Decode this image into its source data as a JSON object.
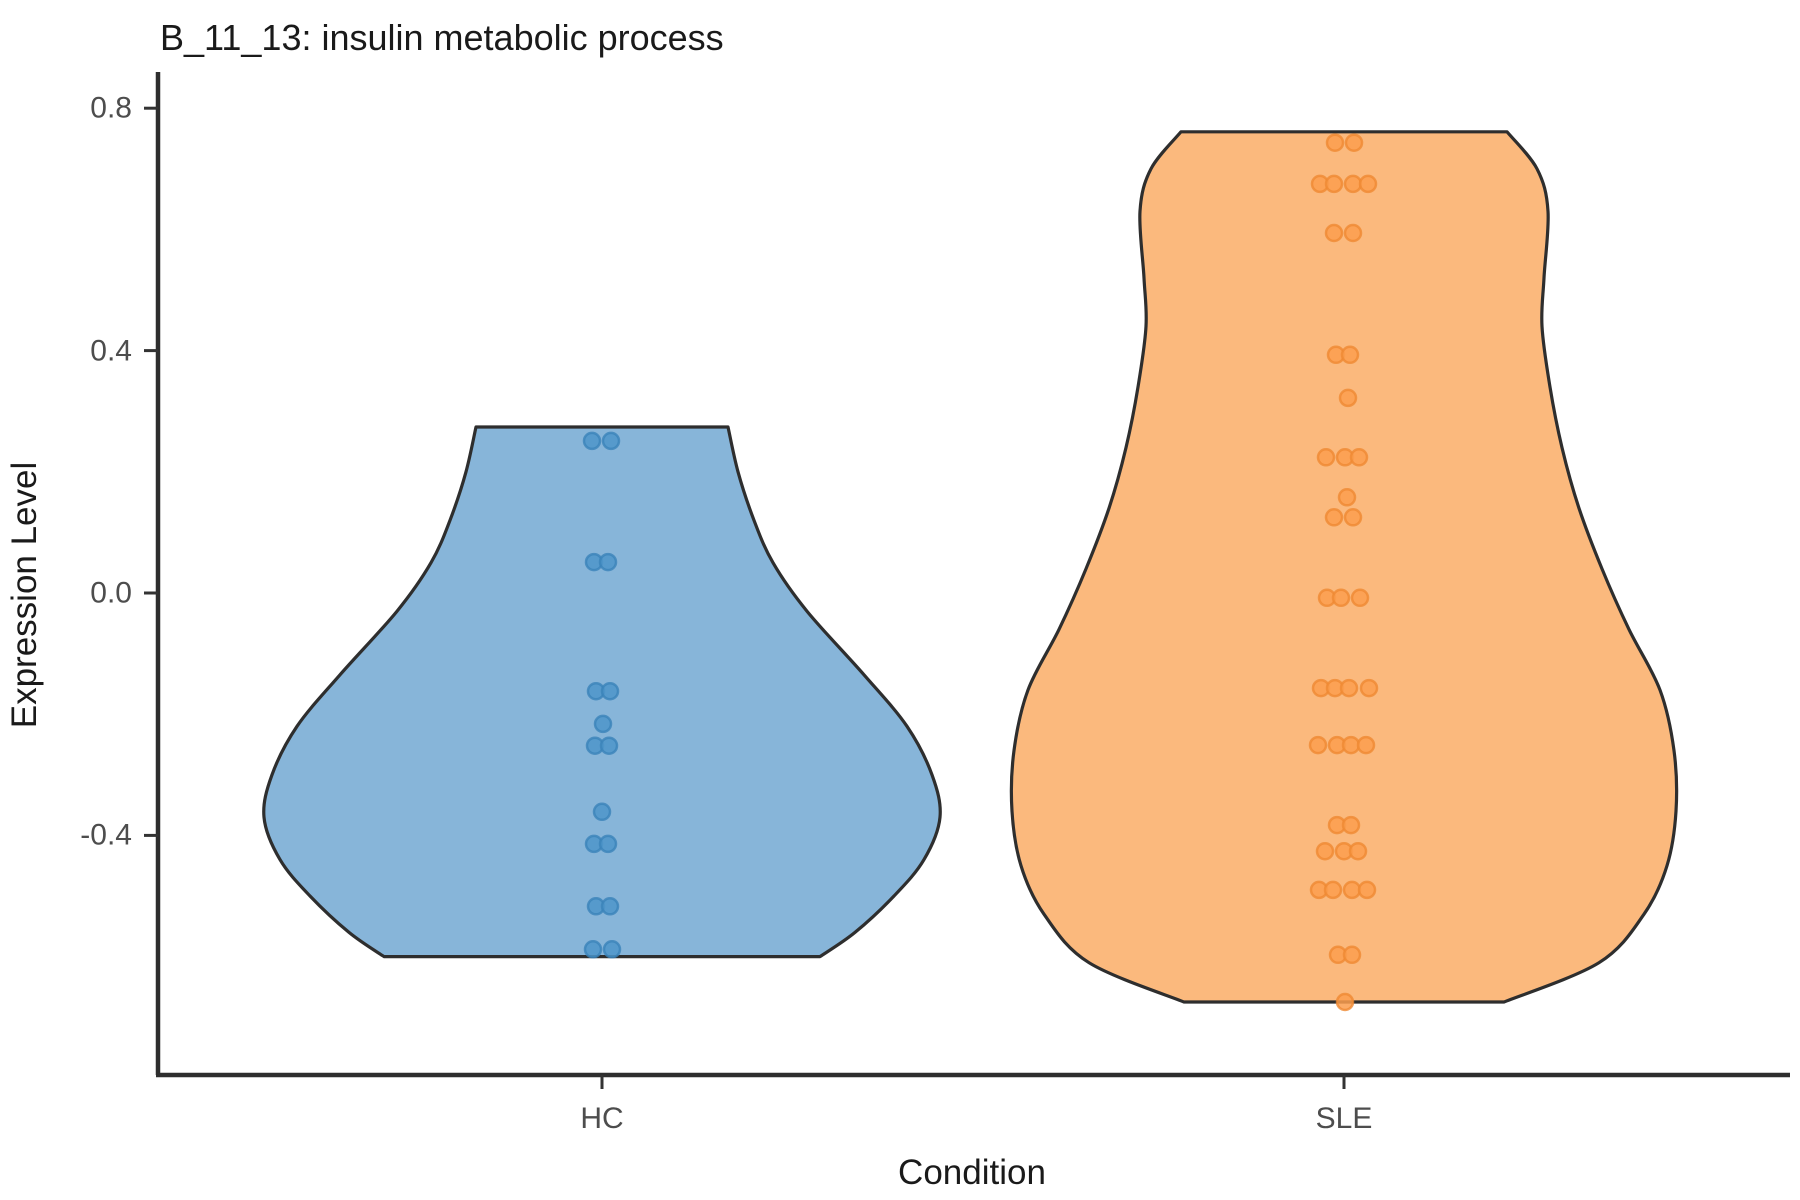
{
  "figure": {
    "title": "B_11_13: insulin metabolic process"
  },
  "y_axis": {
    "label": "Expression Level",
    "tick_labels": [
      "0.8",
      "0.4",
      "0.0",
      "-0.4"
    ]
  },
  "x_axis": {
    "label": "Condition",
    "tick_labels": [
      "HC",
      "SLE"
    ]
  },
  "colors": {
    "background": "#ffffff",
    "axis_line": "#2e2e2e",
    "tick_mark": "#333333",
    "tick_label": "#4d4d4d",
    "text": "#1a1a1a"
  },
  "chart_data": {
    "type": "violin",
    "title": "B_11_13: insulin metabolic process",
    "xlabel": "Condition",
    "ylabel": "Expression Level",
    "categories": [
      "HC",
      "SLE"
    ],
    "y_ticks": [
      0.8,
      0.4,
      0.0,
      -0.4
    ],
    "ylim": [
      -0.78,
      0.86
    ],
    "grid": false,
    "legend": false,
    "groups": [
      {
        "name": "HC",
        "violin_fill": "#87B5D9",
        "violin_outline": "#2e2e2e",
        "point_fill": "#4E95C9",
        "point_stroke": "#3B83B9",
        "trim_top": 0.274,
        "trim_bottom": -0.6,
        "point_rows": [
          {
            "value": 0.251,
            "n": 2
          },
          {
            "value": 0.051,
            "n": 2
          },
          {
            "value": -0.162,
            "n": 2
          },
          {
            "value": -0.216,
            "n": 1
          },
          {
            "value": -0.252,
            "n": 2
          },
          {
            "value": -0.361,
            "n": 1
          },
          {
            "value": -0.414,
            "n": 2
          },
          {
            "value": -0.517,
            "n": 2
          },
          {
            "value": -0.588,
            "n": 2
          }
        ],
        "values_flat": [
          0.251,
          0.251,
          0.051,
          0.051,
          -0.162,
          -0.162,
          -0.216,
          -0.252,
          -0.252,
          -0.361,
          -0.414,
          -0.414,
          -0.517,
          -0.517,
          -0.588,
          -0.588
        ],
        "density_profile": [
          {
            "v": 0.274,
            "hw": 126
          },
          {
            "v": 0.2,
            "hw": 136
          },
          {
            "v": 0.12,
            "hw": 152
          },
          {
            "v": 0.05,
            "hw": 171
          },
          {
            "v": -0.03,
            "hw": 205
          },
          {
            "v": -0.135,
            "hw": 262
          },
          {
            "v": -0.22,
            "hw": 305
          },
          {
            "v": -0.3,
            "hw": 330
          },
          {
            "v": -0.37,
            "hw": 338
          },
          {
            "v": -0.44,
            "hw": 322
          },
          {
            "v": -0.5,
            "hw": 292
          },
          {
            "v": -0.56,
            "hw": 253
          },
          {
            "v": -0.6,
            "hw": 218
          }
        ]
      },
      {
        "name": "SLE",
        "violin_fill": "#FBB97D",
        "violin_outline": "#2e2e2e",
        "point_fill": "#FC9E4E",
        "point_stroke": "#EF8A33",
        "trim_top": 0.761,
        "trim_bottom": -0.675,
        "point_rows": [
          {
            "value": 0.743,
            "n": 2
          },
          {
            "value": 0.675,
            "n": 4
          },
          {
            "value": 0.594,
            "n": 2
          },
          {
            "value": 0.393,
            "n": 2
          },
          {
            "value": 0.322,
            "n": 1
          },
          {
            "value": 0.224,
            "n": 3
          },
          {
            "value": 0.158,
            "n": 1
          },
          {
            "value": 0.125,
            "n": 2
          },
          {
            "value": -0.008,
            "n": 3
          },
          {
            "value": -0.157,
            "n": 4
          },
          {
            "value": -0.251,
            "n": 4
          },
          {
            "value": -0.383,
            "n": 2
          },
          {
            "value": -0.426,
            "n": 3
          },
          {
            "value": -0.49,
            "n": 4
          },
          {
            "value": -0.597,
            "n": 2
          },
          {
            "value": -0.675,
            "n": 1
          }
        ],
        "values_flat": [
          0.743,
          0.743,
          0.675,
          0.675,
          0.675,
          0.675,
          0.594,
          0.594,
          0.393,
          0.393,
          0.322,
          0.224,
          0.224,
          0.224,
          0.158,
          0.125,
          0.125,
          -0.008,
          -0.008,
          -0.008,
          -0.157,
          -0.157,
          -0.157,
          -0.157,
          -0.251,
          -0.251,
          -0.251,
          -0.251,
          -0.383,
          -0.383,
          -0.426,
          -0.426,
          -0.426,
          -0.49,
          -0.49,
          -0.49,
          -0.49,
          -0.597,
          -0.597,
          -0.675
        ],
        "density_profile": [
          {
            "v": 0.761,
            "hw": 163
          },
          {
            "v": 0.7,
            "hw": 193
          },
          {
            "v": 0.63,
            "hw": 204
          },
          {
            "v": 0.52,
            "hw": 200
          },
          {
            "v": 0.44,
            "hw": 198
          },
          {
            "v": 0.34,
            "hw": 206
          },
          {
            "v": 0.24,
            "hw": 218
          },
          {
            "v": 0.14,
            "hw": 235
          },
          {
            "v": 0.04,
            "hw": 258
          },
          {
            "v": -0.06,
            "hw": 285
          },
          {
            "v": -0.16,
            "hw": 316
          },
          {
            "v": -0.26,
            "hw": 330
          },
          {
            "v": -0.36,
            "hw": 332
          },
          {
            "v": -0.45,
            "hw": 323
          },
          {
            "v": -0.53,
            "hw": 300
          },
          {
            "v": -0.61,
            "hw": 255
          },
          {
            "v": -0.675,
            "hw": 160
          }
        ]
      }
    ]
  }
}
